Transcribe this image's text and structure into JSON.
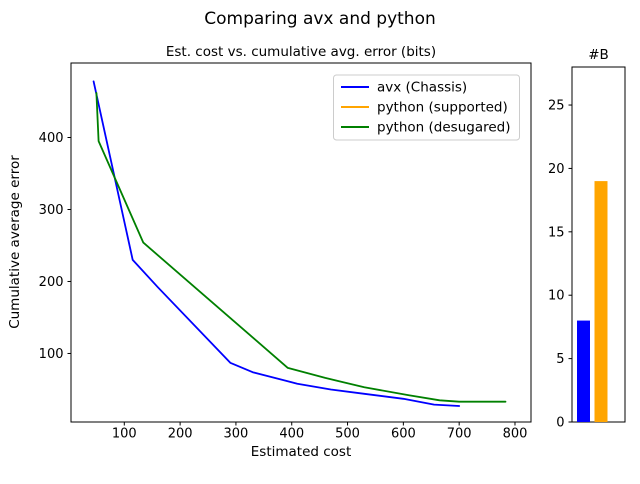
{
  "figure": {
    "suptitle": "Comparing avx and python",
    "background": "#ffffff"
  },
  "chart_data": [
    {
      "type": "line",
      "title": "Est. cost vs. cumulative avg. error (bits)",
      "xlabel": "Estimated cost",
      "ylabel": "Cumulative average error",
      "xlim": [
        4.5,
        828.7
      ],
      "ylim": [
        4.8,
        503.5
      ],
      "xticks": [
        100,
        200,
        300,
        400,
        500,
        600,
        700,
        800
      ],
      "yticks": [
        100,
        200,
        300,
        400
      ],
      "grid": false,
      "legend": {
        "position": "upper right",
        "entries": [
          {
            "label": "avx (Chassis)",
            "color": "#0000ff"
          },
          {
            "label": "python (supported)",
            "color": "#ffa500"
          },
          {
            "label": "python (desugared)",
            "color": "#008000"
          }
        ]
      },
      "series": [
        {
          "name": "avx (Chassis)",
          "color": "#0000ff",
          "points": [
            [
              45,
              478
            ],
            [
              115,
              230
            ],
            [
              160,
              192
            ],
            [
              290,
              87
            ],
            [
              330,
              74
            ],
            [
              410,
              58
            ],
            [
              470,
              50
            ],
            [
              530,
              44
            ],
            [
              600,
              37
            ],
            [
              655,
              29
            ],
            [
              700,
              27
            ]
          ]
        },
        {
          "name": "python (supported)",
          "color": "#ffa500",
          "points": []
        },
        {
          "name": "python (desugared)",
          "color": "#008000",
          "points": [
            [
              50,
              462
            ],
            [
              54,
              395
            ],
            [
              134,
              254
            ],
            [
              393,
              80
            ],
            [
              460,
              66
            ],
            [
              530,
              53
            ],
            [
              610,
              42
            ],
            [
              665,
              35
            ],
            [
              700,
              33
            ],
            [
              783,
              33
            ]
          ]
        }
      ]
    },
    {
      "type": "bar",
      "title": "#B",
      "ylim": [
        0,
        28
      ],
      "yticks": [
        0,
        5,
        10,
        15,
        20,
        25
      ],
      "categories": [
        "avx (Chassis)",
        "python (supported)"
      ],
      "values": [
        8,
        19
      ],
      "colors": [
        "#0000ff",
        "#ffa500"
      ]
    }
  ]
}
